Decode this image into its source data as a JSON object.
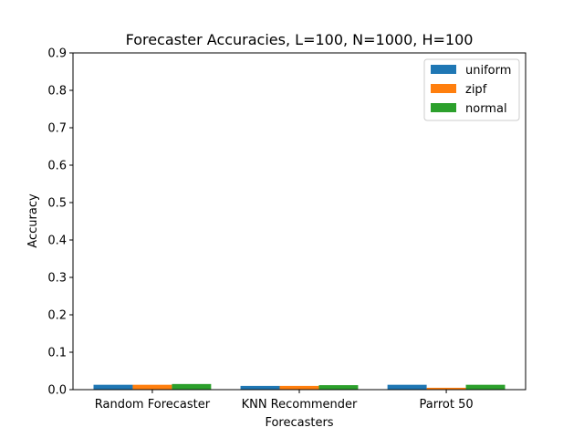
{
  "chart_data": {
    "type": "bar",
    "title": "Forecaster Accuracies, L=100, N=1000, H=100",
    "xlabel": "Forecasters",
    "ylabel": "Accuracy",
    "categories": [
      "Random Forecaster",
      "KNN Recommender",
      "Parrot 50"
    ],
    "ylim": [
      0,
      0.9
    ],
    "yticks": [
      0.0,
      0.1,
      0.2,
      0.3,
      0.4,
      0.5,
      0.6,
      0.7,
      0.8,
      0.9
    ],
    "ytick_labels": [
      "0.0",
      "0.1",
      "0.2",
      "0.3",
      "0.4",
      "0.5",
      "0.6",
      "0.7",
      "0.8",
      "0.9"
    ],
    "series": [
      {
        "name": "uniform",
        "color": "#1f77b4",
        "values": [
          0.013,
          0.01,
          0.013
        ]
      },
      {
        "name": "zipf",
        "color": "#ff7f0e",
        "values": [
          0.013,
          0.01,
          0.005
        ]
      },
      {
        "name": "normal",
        "color": "#2ca02c",
        "values": [
          0.015,
          0.012,
          0.013
        ]
      }
    ],
    "legend_position": "top-right",
    "grid": false
  }
}
